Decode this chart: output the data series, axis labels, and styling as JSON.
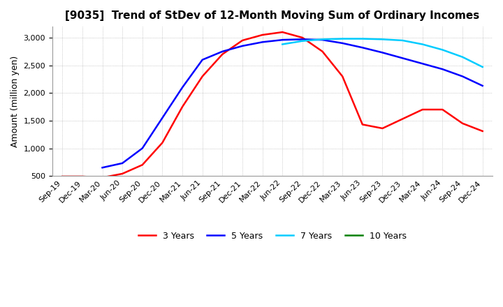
{
  "title": "[9035]  Trend of StDev of 12-Month Moving Sum of Ordinary Incomes",
  "ylabel": "Amount (million yen)",
  "x_labels": [
    "Sep-19",
    "Dec-19",
    "Mar-20",
    "Jun-20",
    "Sep-20",
    "Dec-20",
    "Mar-21",
    "Jun-21",
    "Sep-21",
    "Dec-21",
    "Mar-22",
    "Jun-22",
    "Sep-22",
    "Dec-22",
    "Mar-23",
    "Jun-23",
    "Sep-23",
    "Dec-23",
    "Mar-24",
    "Jun-24",
    "Sep-24",
    "Dec-24"
  ],
  "series": {
    "3 Years": {
      "color": "#FF0000",
      "data": [
        490,
        490,
        470,
        540,
        700,
        1100,
        1750,
        2300,
        2700,
        2950,
        3050,
        3100,
        3000,
        2750,
        2300,
        1430,
        1360,
        1530,
        1700,
        1700,
        1450,
        1310
      ]
    },
    "5 Years": {
      "color": "#0000FF",
      "data": [
        null,
        null,
        650,
        730,
        1000,
        1550,
        2100,
        2600,
        2750,
        2850,
        2920,
        2960,
        2970,
        2960,
        2900,
        2820,
        2730,
        2630,
        2530,
        2430,
        2300,
        2130
      ]
    },
    "7 Years": {
      "color": "#00CCFF",
      "data": [
        null,
        null,
        null,
        null,
        null,
        null,
        null,
        null,
        null,
        null,
        null,
        2880,
        2940,
        2970,
        2980,
        2980,
        2970,
        2950,
        2880,
        2780,
        2650,
        2470
      ]
    },
    "10 Years": {
      "color": "#008000",
      "data": [
        null,
        null,
        null,
        null,
        null,
        null,
        null,
        null,
        null,
        null,
        null,
        null,
        null,
        null,
        null,
        null,
        null,
        null,
        null,
        null,
        null,
        null
      ]
    }
  },
  "ylim": [
    500,
    3200
  ],
  "yticks": [
    500,
    1000,
    1500,
    2000,
    2500,
    3000
  ],
  "background_color": "#FFFFFF",
  "grid_color": "#AAAAAA",
  "title_fontsize": 11,
  "axis_fontsize": 9,
  "tick_fontsize": 8,
  "linewidth": 1.8
}
